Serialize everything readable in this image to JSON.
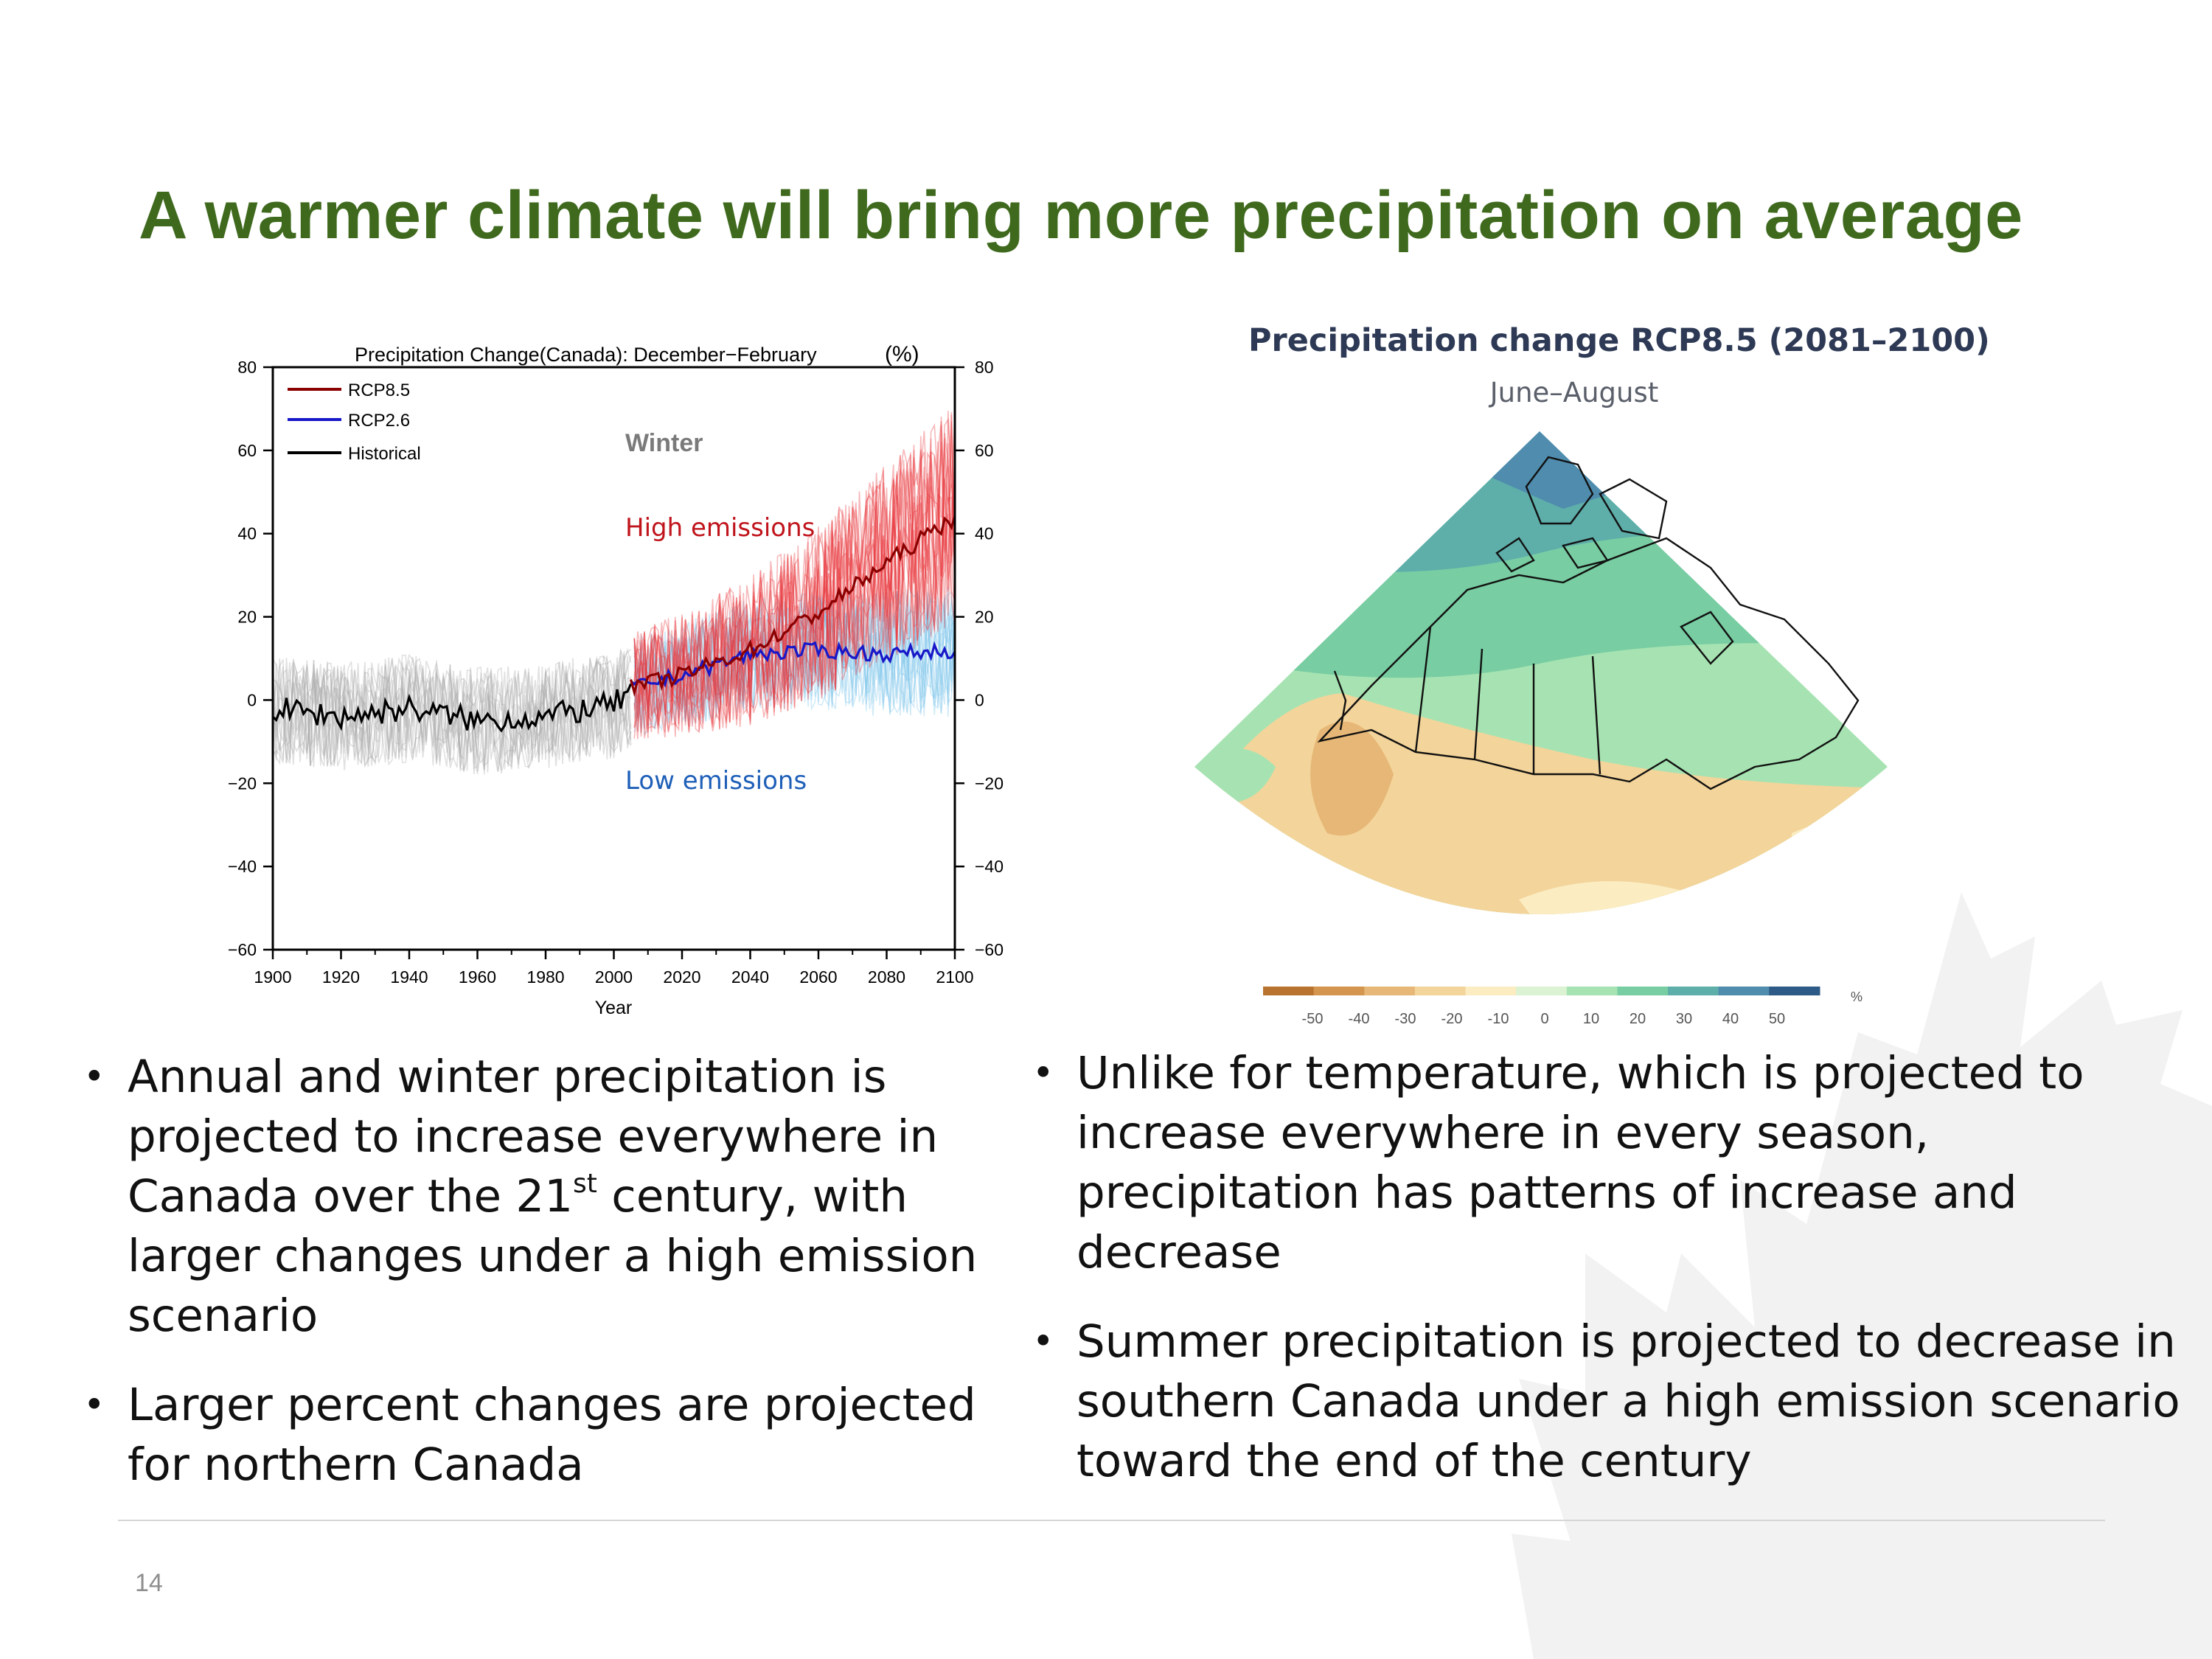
{
  "slide": {
    "title": "A warmer climate will bring more precipitation on average",
    "page_number": "14"
  },
  "left_chart": {
    "title": "Precipitation Change(Canada): December−February",
    "unit_label": "(%)",
    "season_label": "Winter",
    "high_label": "High emissions",
    "low_label": "Low emissions",
    "xlabel": "Year",
    "legend": [
      "RCP8.5",
      "RCP2.6",
      "Historical"
    ],
    "colors": {
      "rcp85": "#8b0000",
      "rcp85_ens": "#e8333a",
      "rcp26": "#1818c8",
      "rcp26_ens": "#7fc6ea",
      "hist": "#000000",
      "hist_ens": "#a8a8a8",
      "high_text": "#c0141c",
      "low_text": "#1e5fb8",
      "winter_text": "#7a7a7a"
    }
  },
  "chart_data": {
    "type": "line",
    "title": "Precipitation Change(Canada): December−February (%)",
    "xlabel": "Year",
    "ylabel": "",
    "xlim": [
      1900,
      2100
    ],
    "ylim": [
      -60,
      80
    ],
    "x_ticks": [
      "1900",
      "1920",
      "1940",
      "1960",
      "1980",
      "2000",
      "2020",
      "2040",
      "2060",
      "2080",
      "2100"
    ],
    "y_ticks": [
      "80",
      "60",
      "40",
      "20",
      "0",
      "−20",
      "−40",
      "−60"
    ],
    "series": [
      {
        "name": "Historical",
        "x": [
          1900,
          1920,
          1940,
          1960,
          1980,
          2000,
          2005
        ],
        "y": [
          -2,
          -4,
          -2,
          -5,
          -4,
          -1,
          2
        ]
      },
      {
        "name": "RCP8.5",
        "x": [
          2005,
          2020,
          2040,
          2060,
          2080,
          2100
        ],
        "y": [
          3,
          6,
          12,
          21,
          33,
          44
        ]
      },
      {
        "name": "RCP2.6",
        "x": [
          2005,
          2020,
          2040,
          2060,
          2080,
          2100
        ],
        "y": [
          3,
          6,
          11,
          12,
          11,
          12
        ]
      }
    ],
    "annotations": [
      "Winter",
      "High emissions",
      "Low emissions"
    ]
  },
  "right_map": {
    "title": "Precipitation change RCP8.5 (2081–2100)",
    "subtitle": "June–August",
    "colorbar_ticks": [
      "-50",
      "-40",
      "-30",
      "-20",
      "-10",
      "0",
      "10",
      "20",
      "30",
      "40",
      "50"
    ],
    "colorbar_unit": "%",
    "colorbar_colors": [
      "#b8742e",
      "#d4954e",
      "#e6b776",
      "#f3d49a",
      "#fbecc2",
      "#dbf3d3",
      "#a7e3b2",
      "#78cda2",
      "#5eaeaa",
      "#4f8cae",
      "#2d5a86"
    ]
  },
  "bullets_left": [
    {
      "pre": "Annual and winter precipitation is projected to increase everywhere in Canada over the 21",
      "sup": "st",
      "post": " century, with larger changes under a high emission scenario"
    },
    {
      "text": "Larger percent changes are projected for northern Canada"
    }
  ],
  "bullets_right": [
    {
      "text": "Unlike for temperature, which is projected to increase everywhere in every season, precipitation has patterns of increase and decrease"
    },
    {
      "text": "Summer precipitation is projected to decrease in southern Canada under a high emission scenario toward the end of the century"
    }
  ]
}
